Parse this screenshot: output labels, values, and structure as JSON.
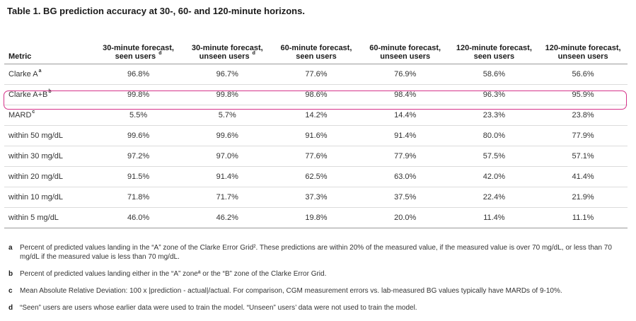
{
  "title": "Table 1. BG prediction accuracy at 30-, 60- and 120-minute horizons.",
  "table": {
    "metric_header": "Metric",
    "columns": [
      {
        "line1": "30-minute forecast,",
        "line2": "seen users",
        "sup": "d"
      },
      {
        "line1": "30-minute forecast,",
        "line2": "unseen users",
        "sup": "d"
      },
      {
        "line1": "60-minute forecast,",
        "line2": "seen users",
        "sup": ""
      },
      {
        "line1": "60-minute forecast,",
        "line2": "unseen users",
        "sup": ""
      },
      {
        "line1": "120-minute forecast,",
        "line2": "seen users",
        "sup": ""
      },
      {
        "line1": "120-minute forecast,",
        "line2": "unseen users",
        "sup": ""
      }
    ],
    "rows": [
      {
        "metric": "Clarke A",
        "sup": "a",
        "values": [
          "96.8%",
          "96.7%",
          "77.6%",
          "76.9%",
          "58.6%",
          "56.6%"
        ]
      },
      {
        "metric": "Clarke A+B",
        "sup": "b",
        "values": [
          "99.8%",
          "99.8%",
          "98.6%",
          "98.4%",
          "96.3%",
          "95.9%"
        ]
      },
      {
        "metric": "MARD",
        "sup": "c",
        "values": [
          "5.5%",
          "5.7%",
          "14.2%",
          "14.4%",
          "23.3%",
          "23.8%"
        ]
      },
      {
        "metric": "within 50 mg/dL",
        "sup": "",
        "values": [
          "99.6%",
          "99.6%",
          "91.6%",
          "91.4%",
          "80.0%",
          "77.9%"
        ]
      },
      {
        "metric": "within 30 mg/dL",
        "sup": "",
        "values": [
          "97.2%",
          "97.0%",
          "77.6%",
          "77.9%",
          "57.5%",
          "57.1%"
        ]
      },
      {
        "metric": "within 20 mg/dL",
        "sup": "",
        "values": [
          "91.5%",
          "91.4%",
          "62.5%",
          "63.0%",
          "42.0%",
          "41.4%"
        ]
      },
      {
        "metric": "within 10 mg/dL",
        "sup": "",
        "values": [
          "71.8%",
          "71.7%",
          "37.3%",
          "37.5%",
          "22.4%",
          "21.9%"
        ]
      },
      {
        "metric": "within 5 mg/dL",
        "sup": "",
        "values": [
          "46.0%",
          "46.2%",
          "19.8%",
          "20.0%",
          "11.4%",
          "11.1%"
        ]
      }
    ]
  },
  "highlight_color": "#d6338a",
  "notes": [
    {
      "mark": "a",
      "text": "Percent of predicted values landing in the “A” zone of the Clarke Error Grid². These predictions are within 20% of the measured value, if the measured value is over 70 mg/dL, or less than 70 mg/dL if the measured value is less than 70 mg/dL."
    },
    {
      "mark": "b",
      "text": "Percent of predicted values landing either in the “A” zoneª or the “B” zone of the Clarke Error Grid."
    },
    {
      "mark": "c",
      "text": "Mean Absolute Relative Deviation: 100 x |prediction - actual|/actual. For comparison, CGM measurement errors vs. lab-measured BG values typically have MARDs of 9-10%."
    },
    {
      "mark": "d",
      "text": "“Seen” users are users whose earlier data were used to train the model. “Unseen” users’ data were not used to train the model."
    }
  ]
}
